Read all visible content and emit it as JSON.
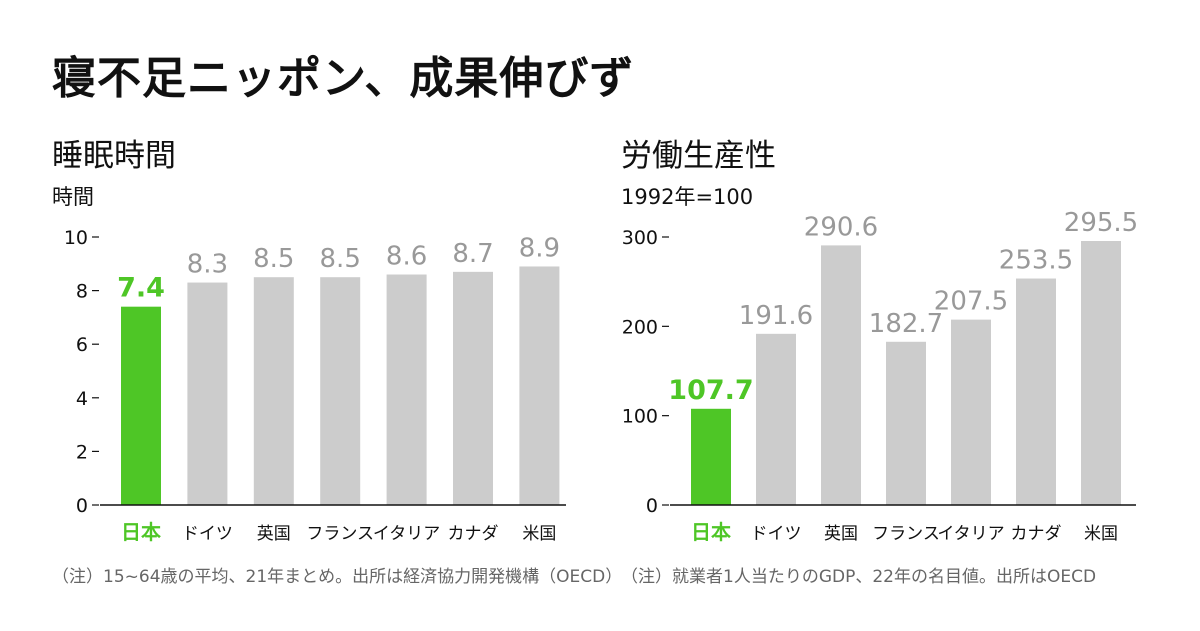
{
  "headline": "寝不足ニッポン、成果伸びず",
  "colors": {
    "highlight": "#4ec626",
    "bar": "#cccccc",
    "bar_label": "#999999",
    "axis": "#111111"
  },
  "chart_data": [
    {
      "type": "bar",
      "title": "睡眠時間",
      "unit": "時間",
      "categories": [
        "日本",
        "ドイツ",
        "英国",
        "フランス",
        "イタリア",
        "カナダ",
        "米国"
      ],
      "values": [
        7.4,
        8.3,
        8.5,
        8.5,
        8.6,
        8.7,
        8.9
      ],
      "value_labels": [
        "7.4",
        "8.3",
        "8.5",
        "8.5",
        "8.6",
        "8.7",
        "8.9"
      ],
      "highlight_index": 0,
      "ylim": [
        0,
        10
      ],
      "yticks": [
        0,
        2,
        4,
        6,
        8,
        10
      ],
      "ytick_labels": [
        "0",
        "2",
        "4",
        "6",
        "8",
        "10"
      ],
      "note": "（注）15~64歳の平均、21年まとめ。出所は経済協力開発機構（OECD）"
    },
    {
      "type": "bar",
      "title": "労働生産性",
      "unit": "1992年=100",
      "categories": [
        "日本",
        "ドイツ",
        "英国",
        "フランス",
        "イタリア",
        "カナダ",
        "米国"
      ],
      "values": [
        107.7,
        191.6,
        290.6,
        182.7,
        207.5,
        253.5,
        295.5
      ],
      "value_labels": [
        "107.7",
        "191.6",
        "290.6",
        "182.7",
        "207.5",
        "253.5",
        "295.5"
      ],
      "highlight_index": 0,
      "ylim": [
        0,
        300
      ],
      "yticks": [
        0,
        100,
        200,
        300
      ],
      "ytick_labels": [
        "0",
        "100",
        "200",
        "300"
      ],
      "note": "（注）就業者1人当たりのGDP、22年の名目値。出所はOECD"
    }
  ]
}
